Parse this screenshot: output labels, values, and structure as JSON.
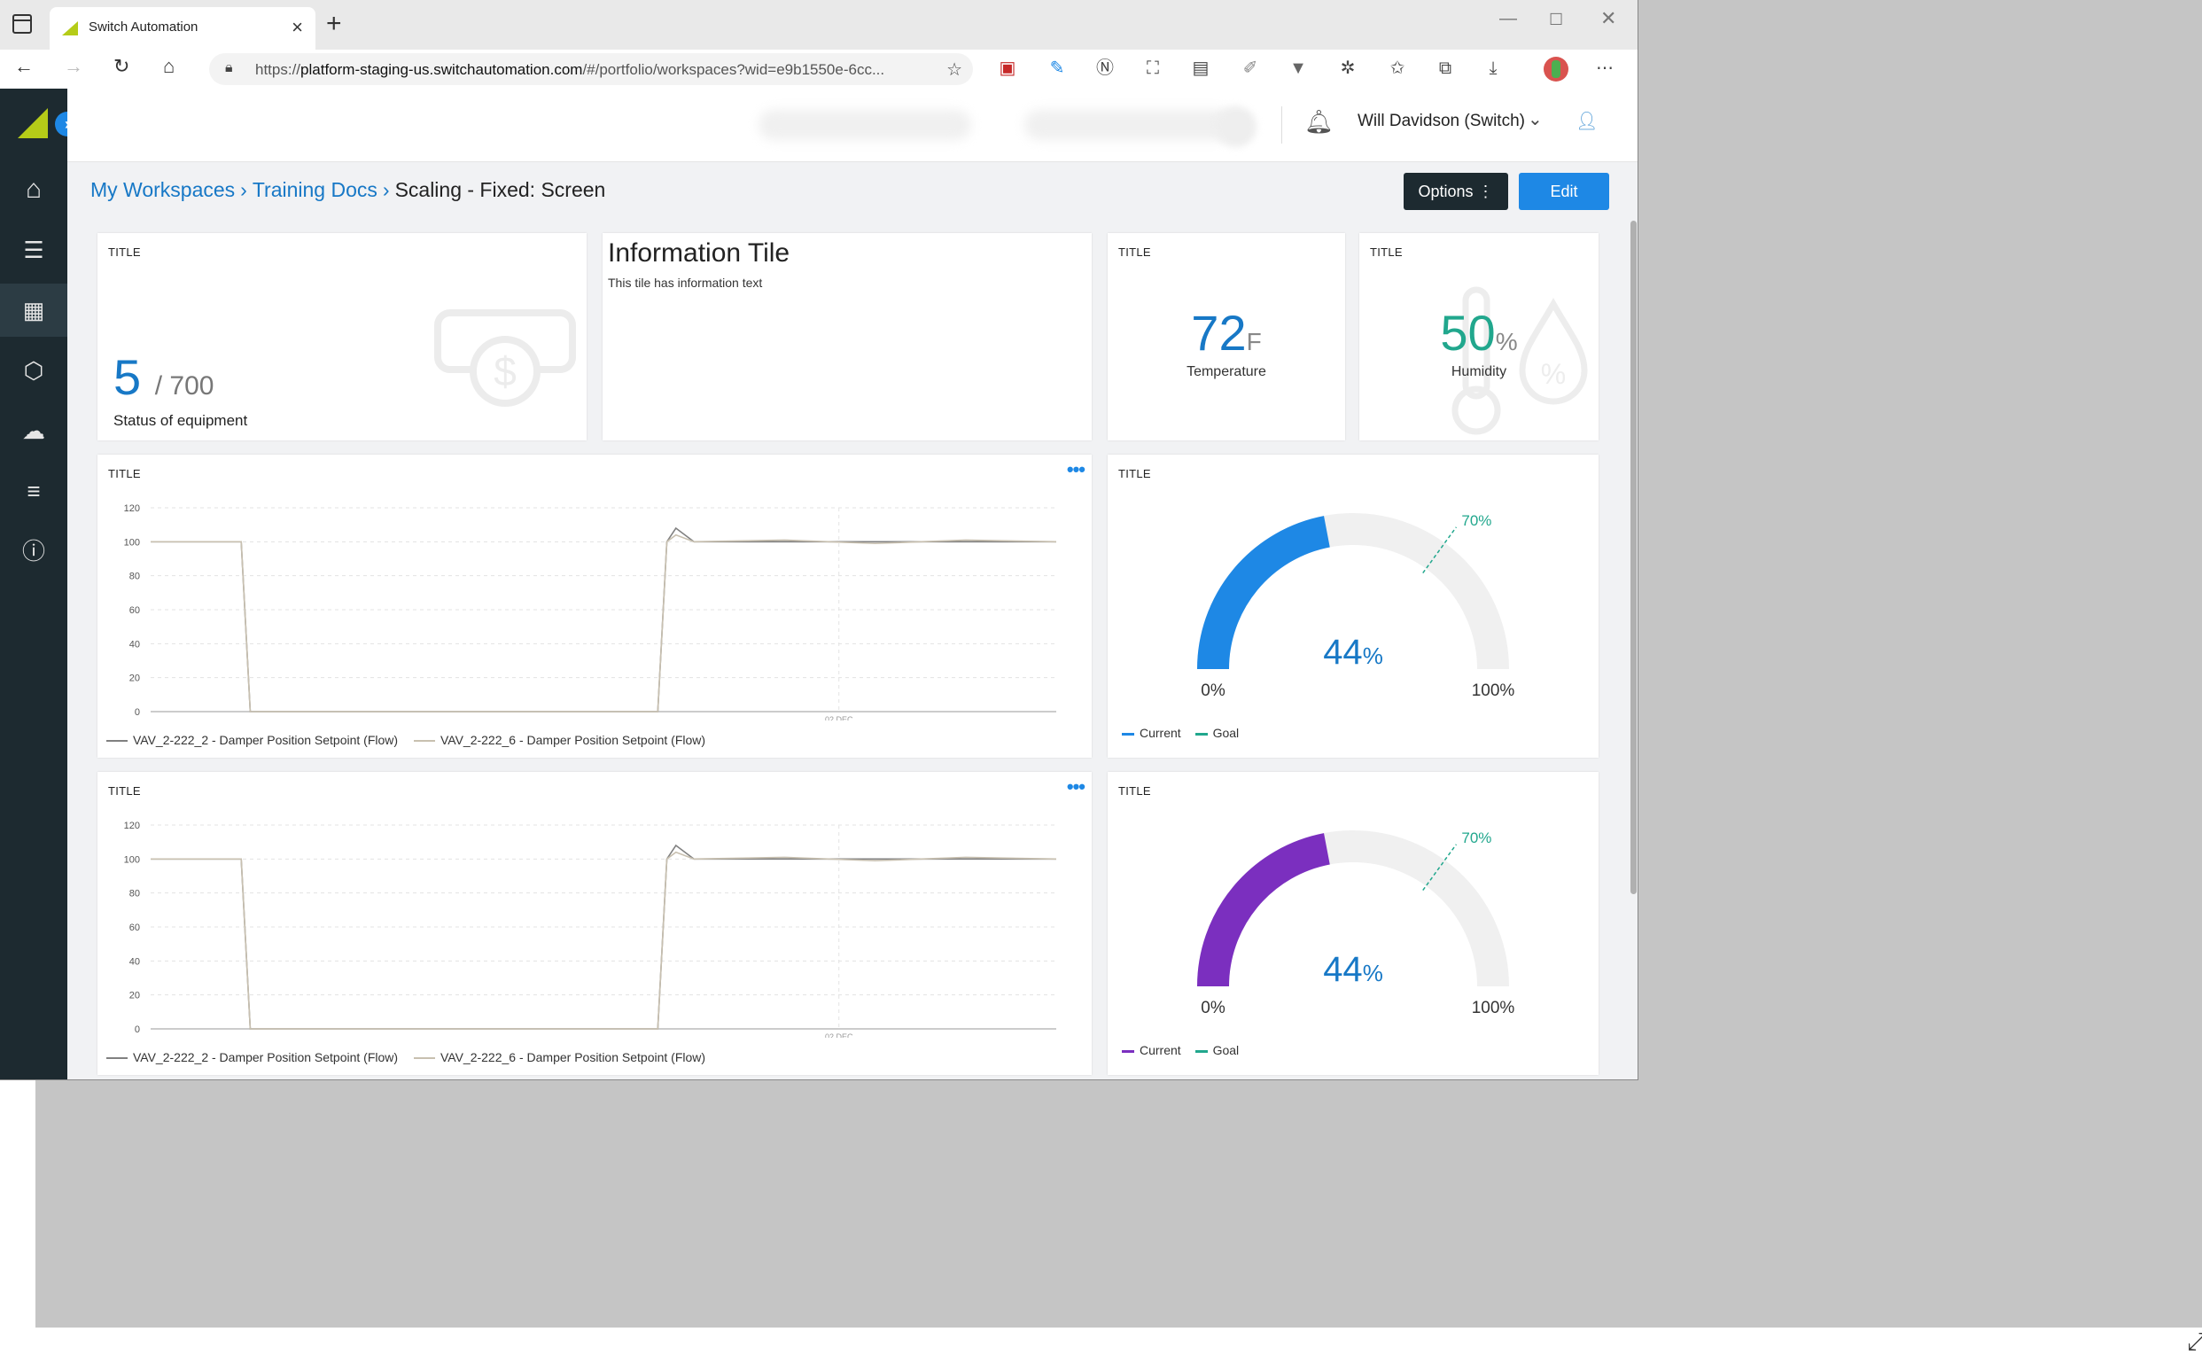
{
  "browser": {
    "tab_title": "Switch Automation",
    "url_prefix": "https://",
    "url_host": "platform-staging-us.switchautomation.com",
    "url_rest": "/#/portfolio/workspaces?wid=e9b1550e-6cc..."
  },
  "header": {
    "user_name": "Will Davidson (Switch)"
  },
  "sidebar": {
    "items": [
      {
        "icon": "home-icon"
      },
      {
        "icon": "checklist-icon"
      },
      {
        "icon": "dashboard-icon"
      },
      {
        "icon": "cubes-icon"
      },
      {
        "icon": "cloud-icon"
      },
      {
        "icon": "sliders-icon"
      },
      {
        "icon": "help-icon"
      }
    ]
  },
  "breadcrumb": {
    "items": [
      "My Workspaces",
      "Training Docs"
    ],
    "current": "Scaling - Fixed: Screen"
  },
  "toolbar": {
    "options_label": "Options ⋮",
    "edit_label": "Edit"
  },
  "tiles": {
    "status": {
      "title": "TITLE",
      "value": "5",
      "total": "/ 700",
      "label": "Status of equipment"
    },
    "info": {
      "heading": "Information Tile",
      "text": "This tile has information text"
    },
    "temperature": {
      "title": "TITLE",
      "value": "72",
      "unit": "F",
      "label": "Temperature"
    },
    "humidity": {
      "title": "TITLE",
      "value": "50",
      "unit": "%",
      "label": "Humidity"
    },
    "chart1": {
      "title": "TITLE",
      "more": "•••"
    },
    "chart2": {
      "title": "TITLE",
      "more": "•••"
    },
    "gauge1": {
      "title": "TITLE",
      "color": "#1e88e5"
    },
    "gauge2": {
      "title": "TITLE",
      "color": "#7b2fbf"
    }
  },
  "chart_data": [
    {
      "type": "line",
      "title": "TITLE",
      "ylim": [
        0,
        120
      ],
      "yticks": [
        0,
        20,
        40,
        60,
        80,
        100,
        120
      ],
      "xtick_label": "02 DEC",
      "grid": true,
      "series": [
        {
          "name": "VAV_2-222_2 - Damper Position Setpoint (Flow)",
          "color": "#808080",
          "x": [
            0,
            10,
            11,
            56,
            57,
            58,
            60,
            70,
            80,
            90,
            100
          ],
          "y": [
            100,
            100,
            0,
            0,
            100,
            108,
            100,
            100,
            100,
            100,
            100
          ]
        },
        {
          "name": "VAV_2-222_6 - Damper Position Setpoint (Flow)",
          "color": "#c8c0b0",
          "x": [
            0,
            10,
            11,
            56,
            57,
            58,
            60,
            70,
            80,
            90,
            100
          ],
          "y": [
            100,
            100,
            0,
            0,
            100,
            104,
            100,
            101,
            99,
            101,
            100
          ]
        }
      ]
    },
    {
      "type": "line",
      "title": "TITLE",
      "ylim": [
        0,
        120
      ],
      "yticks": [
        0,
        20,
        40,
        60,
        80,
        100,
        120
      ],
      "xtick_label": "02 DEC",
      "grid": true,
      "series": [
        {
          "name": "VAV_2-222_2 - Damper Position Setpoint (Flow)",
          "color": "#808080",
          "x": [
            0,
            10,
            11,
            56,
            57,
            58,
            60,
            70,
            80,
            90,
            100
          ],
          "y": [
            100,
            100,
            0,
            0,
            100,
            108,
            100,
            100,
            100,
            100,
            100
          ]
        },
        {
          "name": "VAV_2-222_6 - Damper Position Setpoint (Flow)",
          "color": "#c8c0b0",
          "x": [
            0,
            10,
            11,
            56,
            57,
            58,
            60,
            70,
            80,
            90,
            100
          ],
          "y": [
            100,
            100,
            0,
            0,
            100,
            104,
            100,
            101,
            99,
            101,
            100
          ]
        }
      ]
    },
    {
      "type": "gauge",
      "title": "TITLE",
      "value": 44,
      "goal": 70,
      "min_label": "0%",
      "max_label": "100%",
      "value_label": "44",
      "goal_label": "70%",
      "legend": [
        "Current",
        "Goal"
      ],
      "color": "#1e88e5",
      "goal_color": "#21a78d"
    },
    {
      "type": "gauge",
      "title": "TITLE",
      "value": 44,
      "goal": 70,
      "min_label": "0%",
      "max_label": "100%",
      "value_label": "44",
      "goal_label": "70%",
      "legend": [
        "Current",
        "Goal"
      ],
      "color": "#7b2fbf",
      "goal_color": "#21a78d"
    }
  ]
}
